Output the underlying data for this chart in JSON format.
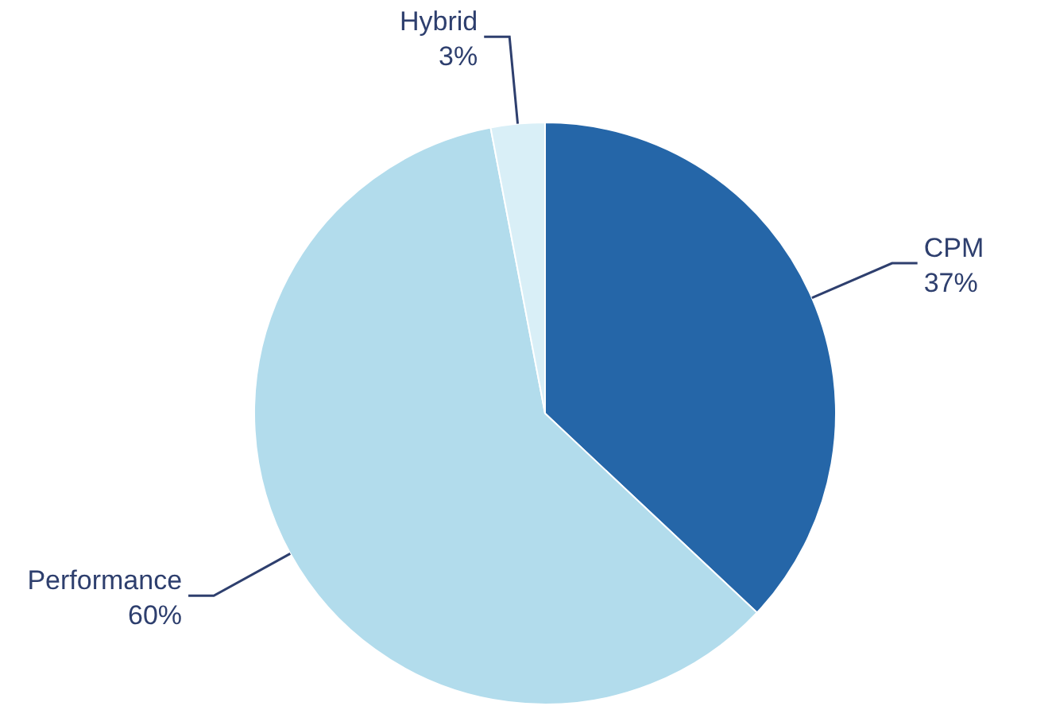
{
  "chart_data": {
    "type": "pie",
    "categories": [
      "CPM",
      "Performance",
      "Hybrid"
    ],
    "values": [
      37,
      60,
      3
    ],
    "value_labels": [
      "37%",
      "60%",
      "3%"
    ],
    "colors": [
      "#2566a8",
      "#b2dcec",
      "#d9eff7"
    ]
  }
}
